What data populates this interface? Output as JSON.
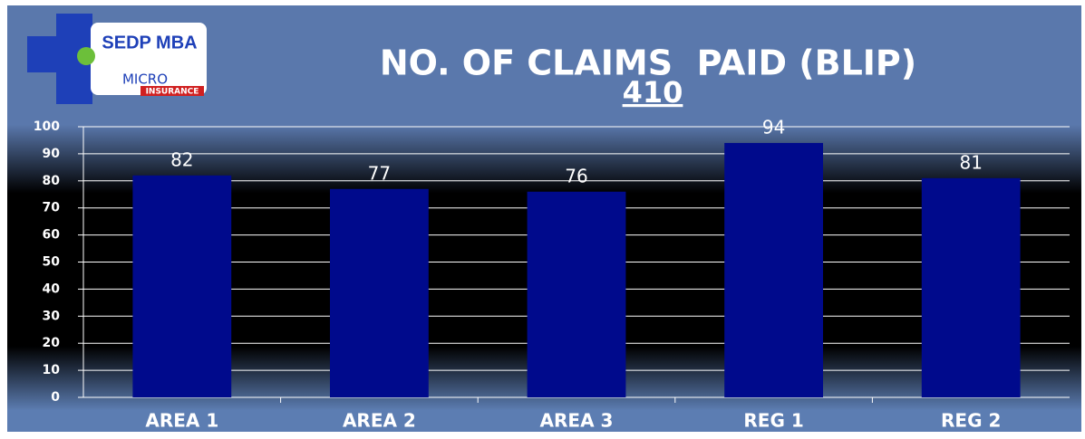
{
  "logo": {
    "name": "SEDP MBA",
    "micro": "MICRO",
    "insurance": "INSURANCE"
  },
  "chart_data": {
    "type": "bar",
    "title": "NO. OF CLAIMS  PAID (BLIP)",
    "subtitle": "410",
    "categories": [
      "AREA 1",
      "AREA 2",
      "AREA 3",
      "REG 1",
      "REG 2"
    ],
    "values": [
      82,
      77,
      76,
      94,
      81
    ],
    "color": "#000a8c",
    "ylim": [
      0,
      100
    ],
    "yticks": [
      0,
      10,
      20,
      30,
      40,
      50,
      60,
      70,
      80,
      90,
      100
    ],
    "grid": true
  }
}
